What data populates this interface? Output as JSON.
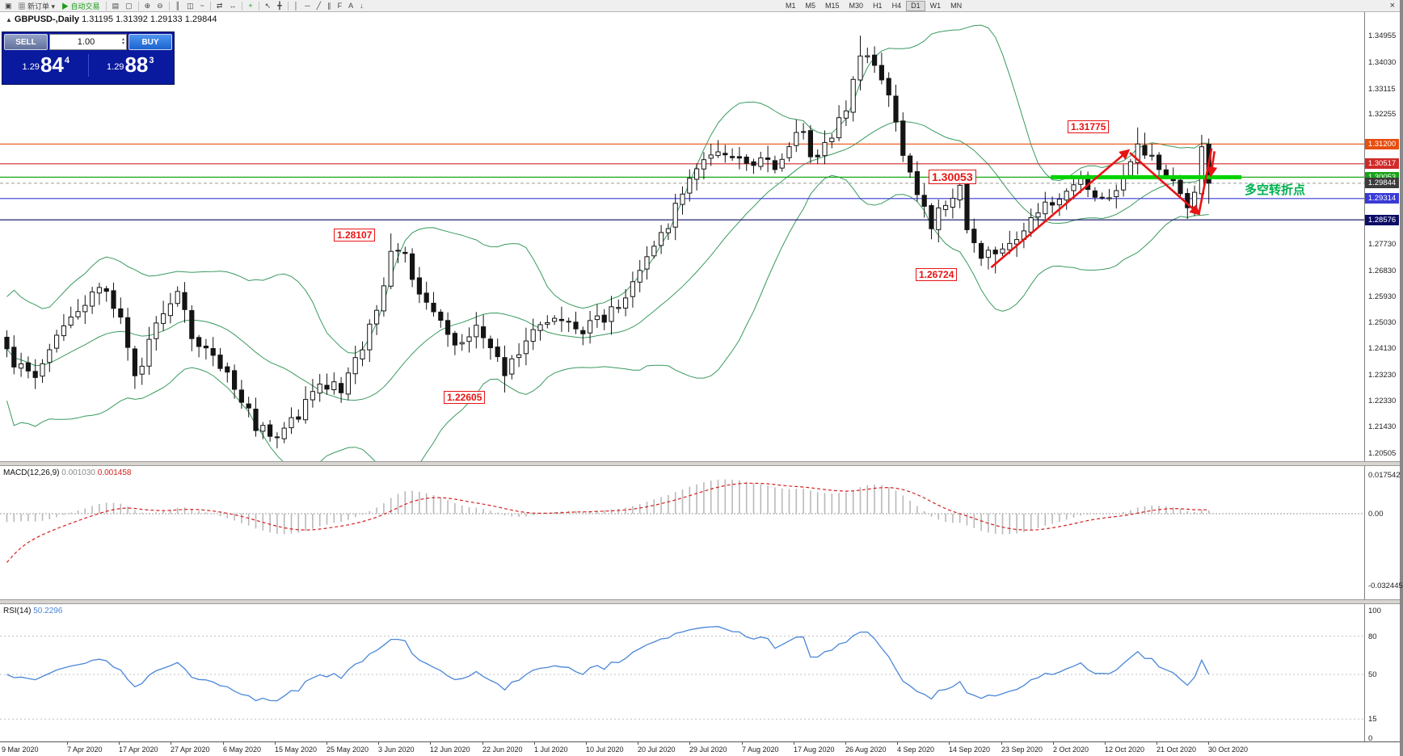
{
  "window": {
    "close_glyph": "×"
  },
  "toolbar": {
    "items": [
      {
        "name": "new-chart-icon",
        "glyph": "▣"
      },
      {
        "name": "new-order-button",
        "glyph": "▦",
        "label": "新订单",
        "suffix": "▾"
      },
      {
        "name": "autotrading-button",
        "glyph": "▶",
        "label": "自动交易",
        "color": "#1a9c1a",
        "sep": true
      },
      {
        "name": "profiles-icon",
        "glyph": "▤"
      },
      {
        "name": "cascade-windows-icon",
        "glyph": "▢",
        "sep": true
      },
      {
        "name": "zoom-in-icon",
        "glyph": "⊕"
      },
      {
        "name": "zoom-out-icon",
        "glyph": "⊖",
        "sep": true
      },
      {
        "name": "bar-chart-icon",
        "glyph": "║"
      },
      {
        "name": "candlestick-chart-icon",
        "glyph": "◫"
      },
      {
        "name": "line-chart-icon",
        "glyph": "~",
        "sep": true
      },
      {
        "name": "auto-scroll-icon",
        "glyph": "⇄"
      },
      {
        "name": "chart-shift-icon",
        "glyph": "↔",
        "sep": true
      },
      {
        "name": "indicators-icon",
        "glyph": "+",
        "color": "#1a9c1a",
        "sep": true
      },
      {
        "name": "cursor-icon",
        "glyph": "↖"
      },
      {
        "name": "crosshair-icon",
        "glyph": "╋",
        "sep": true
      },
      {
        "name": "vertical-line-icon",
        "glyph": "│"
      },
      {
        "name": "horizontal-line-icon",
        "glyph": "─"
      },
      {
        "name": "trendline-icon",
        "glyph": "╱"
      },
      {
        "name": "equidistant-channel-icon",
        "glyph": "∥"
      },
      {
        "name": "fibonacci-icon",
        "glyph": "F"
      },
      {
        "name": "text-label-icon",
        "glyph": "A"
      },
      {
        "name": "arrow-objects-icon",
        "glyph": "↓"
      }
    ],
    "timeframes": [
      "M1",
      "M5",
      "M15",
      "M30",
      "H1",
      "H4",
      "D1",
      "W1",
      "MN"
    ],
    "active_timeframe": "D1"
  },
  "symbol_header": {
    "symbol": "GBPUSD-,Daily",
    "ohlc": "1.31195 1.31392 1.29133 1.29844"
  },
  "trade_panel": {
    "sell_label": "SELL",
    "buy_label": "BUY",
    "volume": "1.00",
    "spinner_up": "▴",
    "spinner_down": "▾",
    "bid": {
      "prefix": "1.29",
      "big": "84",
      "sup": "4"
    },
    "ask": {
      "prefix": "1.29",
      "big": "88",
      "sup": "3"
    }
  },
  "chart_data": {
    "type": "candlestick",
    "symbol": "GBPUSD- Daily",
    "bars_count": 170,
    "price_range_shown": [
      1.20505,
      1.34955
    ],
    "last_bar_ohlc": {
      "open": 1.31195,
      "high": 1.31392,
      "low": 1.29133,
      "close": 1.29844
    },
    "close_anchors": [
      [
        0,
        1.24
      ],
      [
        2,
        1.234
      ],
      [
        4,
        1.232
      ],
      [
        7,
        1.2465
      ],
      [
        11,
        1.2575
      ],
      [
        14,
        1.2625
      ],
      [
        16,
        1.2505
      ],
      [
        18,
        1.23
      ],
      [
        21,
        1.2495
      ],
      [
        24,
        1.261
      ],
      [
        26,
        1.245
      ],
      [
        29,
        1.2375
      ],
      [
        32,
        1.228
      ],
      [
        35,
        1.215
      ],
      [
        38,
        1.209
      ],
      [
        41,
        1.2185
      ],
      [
        44,
        1.23
      ],
      [
        47,
        1.2265
      ],
      [
        50,
        1.243
      ],
      [
        53,
        1.261
      ],
      [
        54,
        1.275
      ],
      [
        56,
        1.274
      ],
      [
        58,
        1.258
      ],
      [
        61,
        1.2505
      ],
      [
        63,
        1.242
      ],
      [
        66,
        1.25
      ],
      [
        68,
        1.242
      ],
      [
        70,
        1.232
      ],
      [
        72,
        1.241
      ],
      [
        74,
        1.2465
      ],
      [
        78,
        1.252
      ],
      [
        80,
        1.2465
      ],
      [
        82,
        1.2505
      ],
      [
        86,
        1.2545
      ],
      [
        88,
        1.266
      ],
      [
        91,
        1.275
      ],
      [
        93,
        1.2845
      ],
      [
        95,
        1.295
      ],
      [
        97,
        1.304
      ],
      [
        100,
        1.308
      ],
      [
        102,
        1.309
      ],
      [
        104,
        1.3055
      ],
      [
        106,
        1.3075
      ],
      [
        108,
        1.3035
      ],
      [
        110,
        1.312
      ],
      [
        112,
        1.318
      ],
      [
        113,
        1.3075
      ],
      [
        115,
        1.3105
      ],
      [
        118,
        1.324
      ],
      [
        120,
        1.343
      ],
      [
        122,
        1.339
      ],
      [
        124,
        1.33
      ],
      [
        126,
        1.31
      ],
      [
        128,
        1.2925
      ],
      [
        130,
        1.2845
      ],
      [
        132,
        1.2915
      ],
      [
        134,
        1.296
      ],
      [
        135,
        1.2835
      ],
      [
        137,
        1.2745
      ],
      [
        139,
        1.2725
      ],
      [
        141,
        1.2755
      ],
      [
        143,
        1.2825
      ],
      [
        145,
        1.2885
      ],
      [
        147,
        1.2925
      ],
      [
        149,
        1.2965
      ],
      [
        151,
        1.3005
      ],
      [
        152,
        1.2945
      ],
      [
        154,
        1.2925
      ],
      [
        156,
        1.2965
      ],
      [
        158,
        1.3055
      ],
      [
        159,
        1.312
      ],
      [
        161,
        1.3065
      ],
      [
        163,
        1.3025
      ],
      [
        165,
        1.2965
      ],
      [
        166,
        1.289
      ],
      [
        167,
        1.2955
      ],
      [
        168,
        1.3118
      ],
      [
        169,
        1.29844
      ]
    ],
    "key_extremes": [
      {
        "bar": 54,
        "high": 1.28107
      },
      {
        "bar": 70,
        "low": 1.22605
      },
      {
        "bar": 120,
        "high": 1.3495
      },
      {
        "bar": 139,
        "low": 1.26724
      },
      {
        "bar": 159,
        "high": 1.31775
      },
      {
        "bar": 166,
        "low": 1.2861
      },
      {
        "bar": 169,
        "high": 1.31392,
        "low": 1.29133
      }
    ],
    "bollinger": {
      "period": 20,
      "deviation": 2,
      "color": "#3a9a5f"
    },
    "horizontal_lines": [
      {
        "price": 1.312,
        "color": "#e84e0e"
      },
      {
        "price": 1.30517,
        "color": "#d02a2a"
      },
      {
        "price": 1.30053,
        "color": "#18a818"
      },
      {
        "price": 1.29314,
        "color": "#3a3ad6"
      },
      {
        "price": 1.28576,
        "color": "#0c0c66"
      }
    ],
    "bid_line": {
      "price": 1.29844,
      "color": "#9a9a9a"
    },
    "macd": {
      "label": "MACD(12,26,9)",
      "value1": "0.001030",
      "value2": "0.001458",
      "scale": [
        "0.017542",
        "0.00",
        "-0.032445"
      ],
      "hist_color": "#b9b9b9",
      "signal_color": "#d42020"
    },
    "rsi": {
      "label": "RSI(14)",
      "value": "50.2296",
      "levels": [
        100,
        80,
        50,
        15,
        0
      ],
      "dashed_levels": [
        80,
        50,
        15
      ],
      "color": "#4a86d8"
    },
    "x_labels": [
      "9 Mar 2020",
      "7 Apr 2020",
      "17 Apr 2020",
      "27 Apr 2020",
      "6 May 2020",
      "15 May 2020",
      "25 May 2020",
      "3 Jun 2020",
      "12 Jun 2020",
      "22 Jun 2020",
      "1 Jul 2020",
      "10 Jul 2020",
      "20 Jul 2020",
      "29 Jul 2020",
      "7 Aug 2020",
      "17 Aug 2020",
      "26 Aug 2020",
      "4 Sep 2020",
      "14 Sep 2020",
      "23 Sep 2020",
      "2 Oct 2020",
      "12 Oct 2020",
      "21 Oct 2020",
      "30 Oct 2020"
    ]
  },
  "price_scale": {
    "labels": [
      "1.34955",
      "1.34030",
      "1.33115",
      "1.32255",
      "1.27730",
      "1.26830",
      "1.25930",
      "1.25030",
      "1.24130",
      "1.23230",
      "1.22330",
      "1.21430",
      "1.20505"
    ],
    "tags": [
      {
        "text": "1.31200",
        "price": 1.312,
        "bg": "#e84e0e"
      },
      {
        "text": "1.30517",
        "price": 1.30517,
        "bg": "#d02a2a"
      },
      {
        "text": "1.30053",
        "price": 1.30053,
        "bg": "#16a316"
      },
      {
        "text": "1.29844",
        "price": 1.29844,
        "bg": "#3c3c3c"
      },
      {
        "text": "1.29314",
        "price": 1.29314,
        "bg": "#3a3ad6"
      },
      {
        "text": "1.28576",
        "price": 1.28576,
        "bg": "#0c0c66"
      }
    ]
  },
  "annotations": {
    "price_labels": [
      {
        "text": "1.31775",
        "bar": 152.3,
        "price": 1.3177,
        "size": 12
      },
      {
        "text": "1.30053",
        "bar": 133.5,
        "price": 1.3002,
        "size": 14
      },
      {
        "text": "1.28107",
        "bar": 49.2,
        "price": 1.2803,
        "size": 12
      },
      {
        "text": "1.22605",
        "bar": 64.6,
        "price": 1.2241,
        "size": 12
      },
      {
        "text": "1.26724",
        "bar": 131.0,
        "price": 1.2665,
        "size": 12
      }
    ],
    "trend_arrows": [
      {
        "from_bar": 138.4,
        "from_price": 1.2693,
        "to_bar": 157.7,
        "to_price": 1.3098,
        "head": true
      },
      {
        "from_bar": 157.9,
        "from_price": 1.309,
        "to_bar": 167.6,
        "to_price": 1.2878,
        "head": true
      },
      {
        "from_bar": 167.6,
        "from_price": 1.2878,
        "to_bar": 169.4,
        "to_price": 1.3105,
        "head": false
      },
      {
        "from_bar": 169.8,
        "from_price": 1.3095,
        "to_bar": 169.3,
        "to_price": 1.3012,
        "head": true
      }
    ],
    "support_segment": {
      "from_bar": 146.8,
      "to_bar": 173.6,
      "price": 1.30053,
      "color": "#00d200",
      "width": 5
    },
    "note": {
      "text": "多空转折点",
      "bar": 174,
      "price": 1.2962,
      "color": "#00b050"
    }
  },
  "colors": {
    "buy_blue": "#1b63cf",
    "sell_slate": "#61719b",
    "panel_navy": "#0a1a9e",
    "band_green": "#3a9a5f",
    "candle_ink": "#141414",
    "arrow_red": "#e81414",
    "segment_green": "#00d200",
    "note_green": "#00b050",
    "macd_hist": "#b9b9b9",
    "macd_signal": "#d42020",
    "rsi_blue": "#4a86d8"
  }
}
